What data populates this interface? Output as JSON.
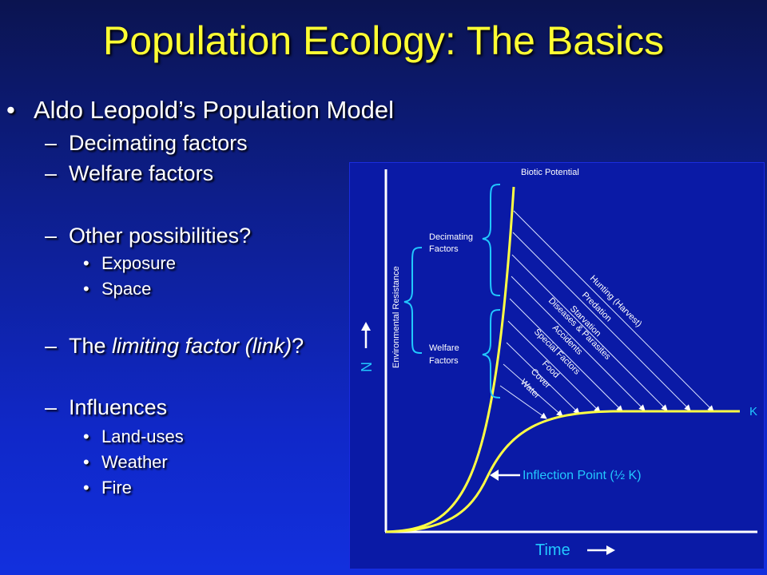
{
  "slide": {
    "title": "Population Ecology: The Basics",
    "bullets": {
      "main": "Aldo Leopold’s Population Model",
      "decimating": "Decimating factors",
      "welfare": "Welfare factors",
      "other": "Other possibilities?",
      "exposure": "Exposure",
      "space": "Space",
      "limiting_pre": "The ",
      "limiting_italic": "limiting factor (link)",
      "limiting_post": "?",
      "influences": "Influences",
      "land_uses": "Land-uses",
      "weather": "Weather",
      "fire": "Fire"
    },
    "symbols": {
      "bullet": "•",
      "dash": "–"
    }
  },
  "diagram": {
    "biotic_potential": "Biotic Potential",
    "environmental_resistance": "Environmental Resistance",
    "decimating_factors": [
      "Decimating",
      "Factors"
    ],
    "welfare_factors": [
      "Welfare",
      "Factors"
    ],
    "factors": [
      "Hunting (Harvest)",
      "Predation",
      "Starvation",
      "Diseases & Parasites",
      "Accidents",
      "Special Factors",
      "Food",
      "Cover",
      "Water"
    ],
    "k_label": "K",
    "inflection_label": "Inflection Point (½ K)",
    "y_axis_label": "N",
    "x_axis_label": "Time",
    "colors": {
      "curve": "#ffff44",
      "accent": "#22c8ff",
      "axis": "#ffffff",
      "label": "#ffffff"
    }
  }
}
